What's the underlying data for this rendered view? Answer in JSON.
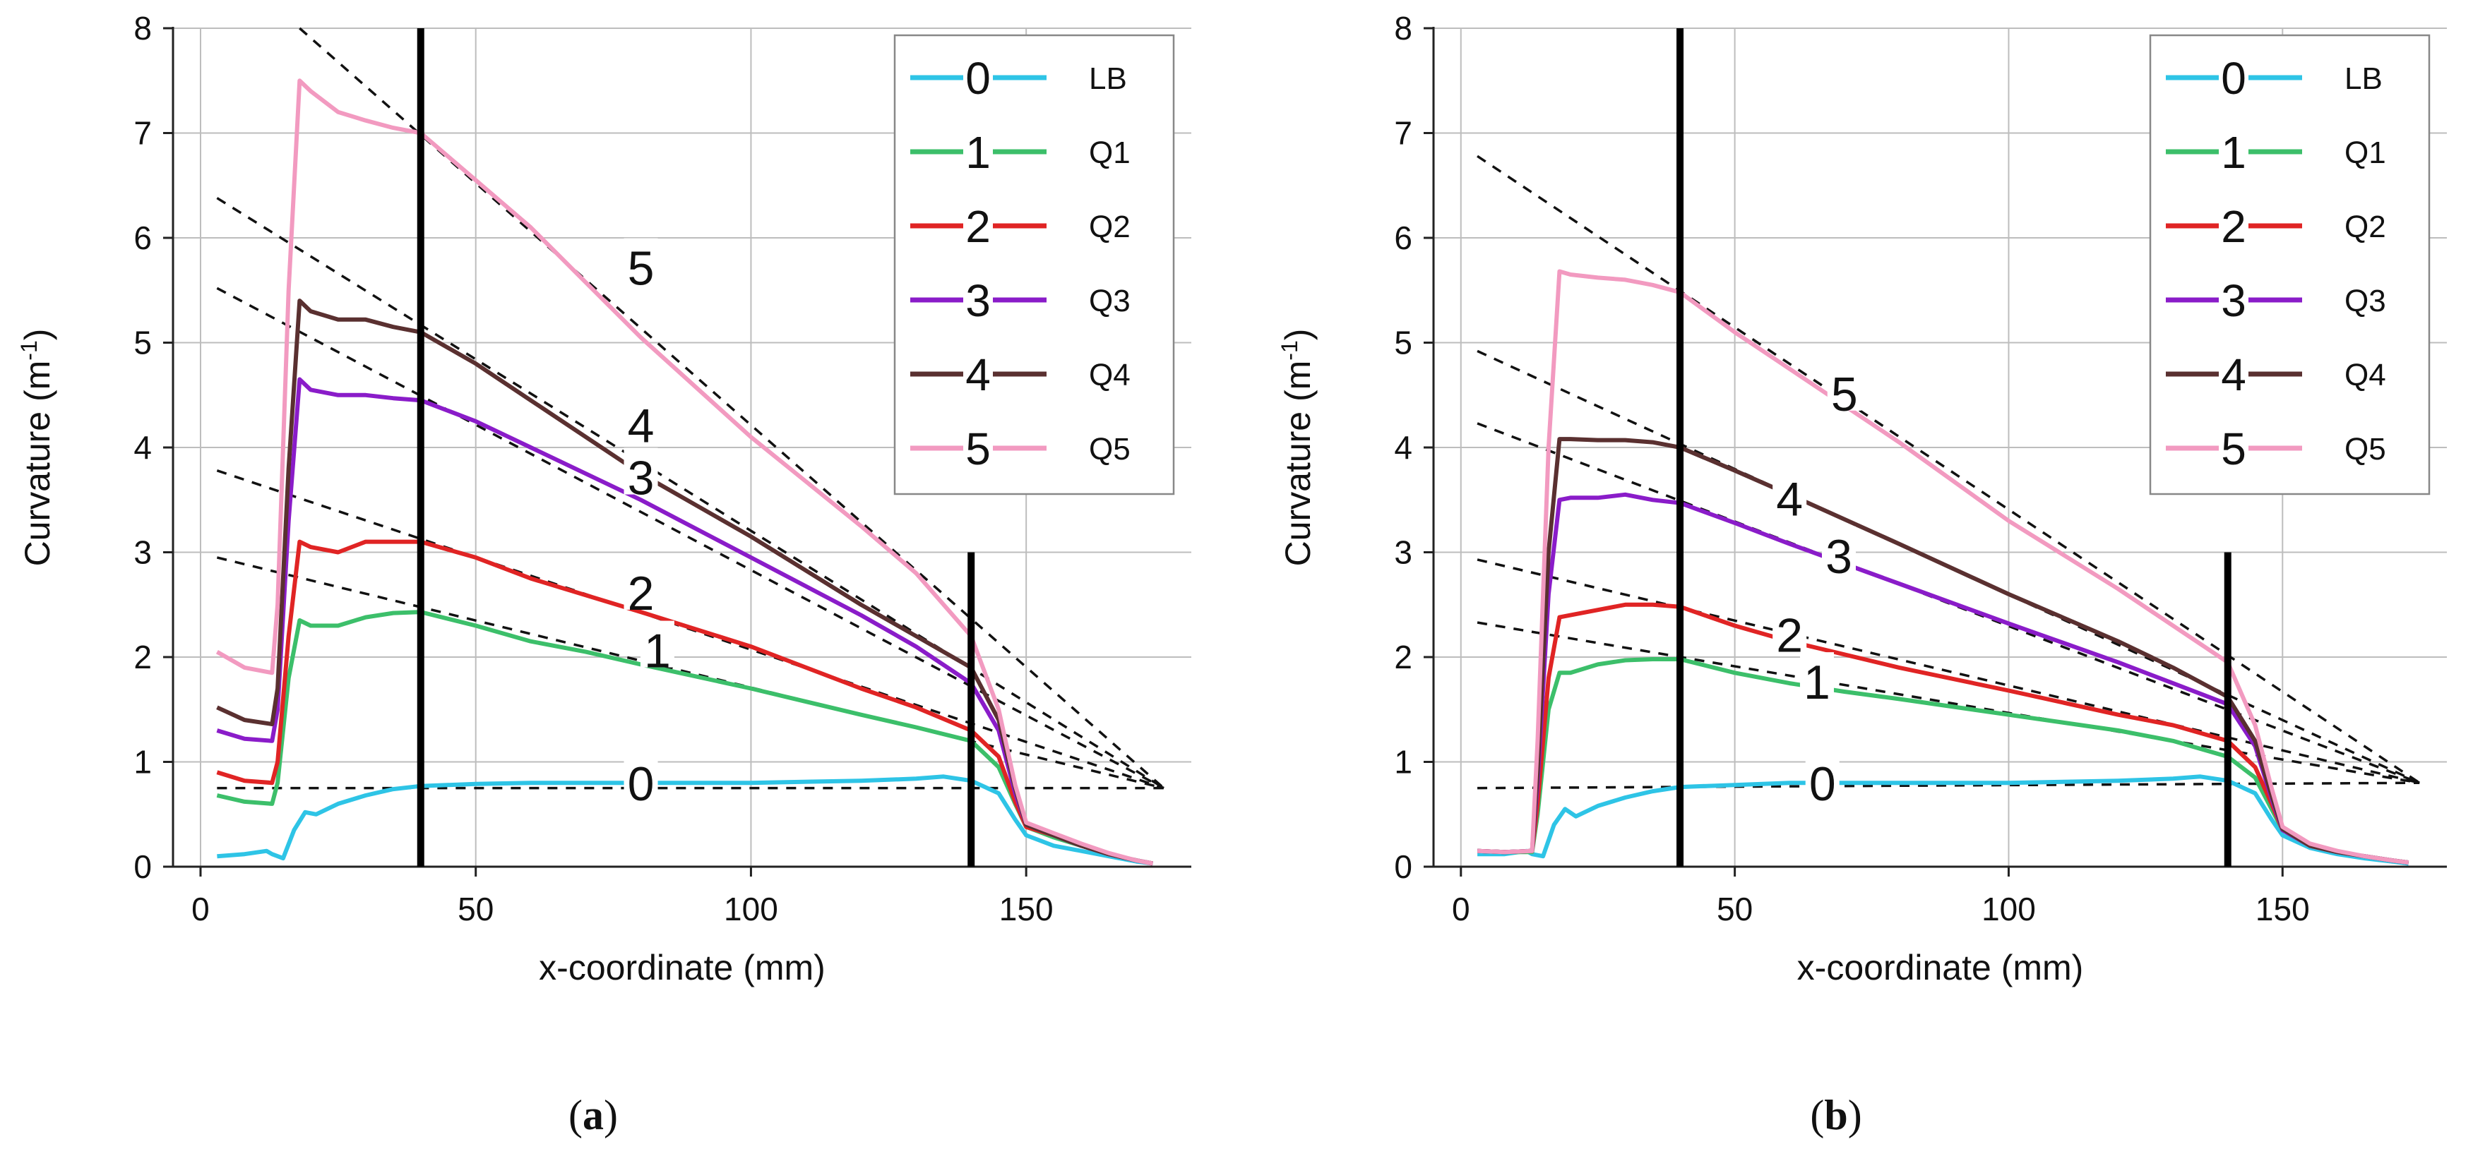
{
  "chart_data": [
    {
      "type": "line",
      "panel": "a",
      "caption_open": "(",
      "caption_letter": "a",
      "caption_close": ")",
      "xlabel": "x-coordinate (mm)",
      "ylabel_main": "Curvature (m",
      "ylabel_sup": "-1",
      "ylabel_close": ")",
      "xlim": [
        -5,
        180
      ],
      "ylim": [
        0,
        8
      ],
      "xticks": [
        0,
        50,
        100,
        150
      ],
      "yticks": [
        0,
        1,
        2,
        3,
        4,
        5,
        6,
        7,
        8
      ],
      "grid": true,
      "legend_position": "top-right",
      "vertical_markers": [
        {
          "x": 40,
          "y_top": 8
        },
        {
          "x": 140,
          "y_top": 3
        }
      ],
      "series": [
        {
          "name": "LB",
          "number": "0",
          "color": "#2ec4e6",
          "x": [
            3,
            8,
            12,
            13,
            15,
            17,
            19,
            21,
            25,
            30,
            35,
            40,
            50,
            60,
            80,
            100,
            120,
            130,
            135,
            140,
            145,
            148,
            150,
            155,
            160,
            165,
            170,
            173
          ],
          "y": [
            0.1,
            0.12,
            0.15,
            0.12,
            0.08,
            0.35,
            0.52,
            0.5,
            0.6,
            0.68,
            0.74,
            0.77,
            0.79,
            0.8,
            0.8,
            0.8,
            0.82,
            0.84,
            0.86,
            0.82,
            0.7,
            0.45,
            0.3,
            0.2,
            0.15,
            0.1,
            0.05,
            0.03
          ]
        },
        {
          "name": "Q1",
          "number": "1",
          "color": "#3cbf6a",
          "x": [
            3,
            8,
            13,
            14,
            16,
            18,
            20,
            25,
            30,
            35,
            40,
            50,
            60,
            70,
            80,
            100,
            120,
            130,
            140,
            145,
            148,
            150,
            155,
            160,
            165,
            170,
            173
          ],
          "y": [
            0.68,
            0.62,
            0.6,
            0.8,
            1.8,
            2.35,
            2.3,
            2.3,
            2.38,
            2.42,
            2.43,
            2.3,
            2.15,
            2.05,
            1.93,
            1.7,
            1.45,
            1.33,
            1.2,
            0.95,
            0.6,
            0.38,
            0.28,
            0.2,
            0.12,
            0.06,
            0.03
          ]
        },
        {
          "name": "Q2",
          "number": "2",
          "color": "#e02424",
          "x": [
            3,
            8,
            13,
            14,
            16,
            18,
            20,
            25,
            30,
            35,
            40,
            50,
            60,
            80,
            100,
            120,
            130,
            140,
            145,
            148,
            150,
            155,
            160,
            165,
            170,
            173
          ],
          "y": [
            0.9,
            0.82,
            0.8,
            1.0,
            2.2,
            3.1,
            3.05,
            3.0,
            3.1,
            3.1,
            3.1,
            2.95,
            2.75,
            2.43,
            2.1,
            1.7,
            1.52,
            1.3,
            1.05,
            0.62,
            0.38,
            0.3,
            0.2,
            0.12,
            0.06,
            0.03
          ]
        },
        {
          "name": "Q3",
          "number": "3",
          "color": "#8a1cc9",
          "x": [
            3,
            8,
            13,
            14,
            16,
            18,
            20,
            25,
            30,
            35,
            40,
            50,
            60,
            80,
            100,
            120,
            130,
            140,
            145,
            148,
            150,
            155,
            160,
            165,
            170,
            173
          ],
          "y": [
            1.3,
            1.22,
            1.2,
            1.5,
            3.3,
            4.65,
            4.55,
            4.5,
            4.5,
            4.47,
            4.45,
            4.25,
            4.0,
            3.5,
            2.95,
            2.4,
            2.1,
            1.75,
            1.3,
            0.7,
            0.4,
            0.3,
            0.2,
            0.12,
            0.06,
            0.03
          ]
        },
        {
          "name": "Q4",
          "number": "4",
          "color": "#5a3030",
          "x": [
            3,
            8,
            13,
            14,
            16,
            18,
            20,
            25,
            30,
            35,
            40,
            50,
            60,
            80,
            100,
            120,
            130,
            140,
            145,
            148,
            150,
            155,
            160,
            165,
            170,
            173
          ],
          "y": [
            1.52,
            1.4,
            1.36,
            1.7,
            3.8,
            5.4,
            5.3,
            5.22,
            5.22,
            5.15,
            5.1,
            4.8,
            4.45,
            3.75,
            3.15,
            2.5,
            2.2,
            1.9,
            1.4,
            0.75,
            0.4,
            0.3,
            0.2,
            0.12,
            0.06,
            0.03
          ]
        },
        {
          "name": "Q5",
          "number": "5",
          "color": "#f29ac0",
          "x": [
            3,
            8,
            13,
            14,
            16,
            18,
            20,
            25,
            30,
            35,
            40,
            50,
            60,
            80,
            100,
            120,
            130,
            140,
            145,
            148,
            150,
            155,
            160,
            165,
            170,
            173
          ],
          "y": [
            2.05,
            1.9,
            1.85,
            2.5,
            5.5,
            7.5,
            7.4,
            7.2,
            7.12,
            7.05,
            7.0,
            6.55,
            6.1,
            5.05,
            4.1,
            3.25,
            2.8,
            2.2,
            1.5,
            0.78,
            0.42,
            0.32,
            0.22,
            0.13,
            0.06,
            0.03
          ]
        }
      ],
      "fit_lines": [
        {
          "x": [
            3,
            175
          ],
          "y": [
            0.75,
            0.75
          ]
        },
        {
          "x": [
            3,
            175
          ],
          "y": [
            2.95,
            0.75
          ]
        },
        {
          "x": [
            3,
            175
          ],
          "y": [
            3.78,
            0.75
          ]
        },
        {
          "x": [
            3,
            175
          ],
          "y": [
            5.52,
            0.75
          ]
        },
        {
          "x": [
            3,
            175
          ],
          "y": [
            6.38,
            0.75
          ]
        },
        {
          "x": [
            18,
            175
          ],
          "y": [
            8.0,
            0.75
          ]
        }
      ],
      "curve_labels": [
        {
          "text": "0",
          "x": 80,
          "y": 0.78
        },
        {
          "text": "1",
          "x": 83,
          "y": 2.05
        },
        {
          "text": "2",
          "x": 80,
          "y": 2.6
        },
        {
          "text": "3",
          "x": 80,
          "y": 3.7
        },
        {
          "text": "4",
          "x": 80,
          "y": 4.2
        },
        {
          "text": "5",
          "x": 80,
          "y": 5.7
        }
      ]
    },
    {
      "type": "line",
      "panel": "b",
      "caption_open": "(",
      "caption_letter": "b",
      "caption_close": ")",
      "xlabel": "x-coordinate (mm)",
      "ylabel_main": "Curvature (m",
      "ylabel_sup": "-1",
      "ylabel_close": ")",
      "xlim": [
        -5,
        180
      ],
      "ylim": [
        0,
        8
      ],
      "xticks": [
        0,
        50,
        100,
        150
      ],
      "yticks": [
        0,
        1,
        2,
        3,
        4,
        5,
        6,
        7,
        8
      ],
      "grid": true,
      "legend_position": "top-right",
      "vertical_markers": [
        {
          "x": 40,
          "y_top": 8
        },
        {
          "x": 140,
          "y_top": 3
        }
      ],
      "series": [
        {
          "name": "LB",
          "number": "0",
          "color": "#2ec4e6",
          "x": [
            3,
            8,
            12,
            13,
            15,
            17,
            19,
            21,
            25,
            30,
            35,
            40,
            50,
            60,
            80,
            100,
            120,
            130,
            135,
            140,
            145,
            148,
            150,
            155,
            160,
            165,
            170,
            173
          ],
          "y": [
            0.12,
            0.12,
            0.15,
            0.12,
            0.1,
            0.4,
            0.55,
            0.48,
            0.58,
            0.66,
            0.72,
            0.76,
            0.78,
            0.8,
            0.8,
            0.8,
            0.82,
            0.84,
            0.86,
            0.82,
            0.7,
            0.45,
            0.3,
            0.18,
            0.12,
            0.08,
            0.05,
            0.03
          ]
        },
        {
          "name": "Q1",
          "number": "1",
          "color": "#3cbf6a",
          "x": [
            3,
            8,
            13,
            14,
            16,
            18,
            20,
            25,
            30,
            35,
            40,
            50,
            60,
            70,
            80,
            100,
            120,
            130,
            140,
            145,
            148,
            150,
            155,
            160,
            165,
            170,
            173
          ],
          "y": [
            0.15,
            0.14,
            0.14,
            0.5,
            1.5,
            1.85,
            1.85,
            1.93,
            1.97,
            1.98,
            1.98,
            1.85,
            1.75,
            1.67,
            1.6,
            1.45,
            1.3,
            1.2,
            1.05,
            0.85,
            0.55,
            0.35,
            0.2,
            0.14,
            0.1,
            0.06,
            0.04
          ]
        },
        {
          "name": "Q2",
          "number": "2",
          "color": "#e02424",
          "x": [
            3,
            8,
            13,
            14,
            16,
            18,
            20,
            25,
            30,
            35,
            40,
            50,
            60,
            80,
            100,
            120,
            130,
            140,
            145,
            148,
            150,
            155,
            160,
            165,
            170,
            173
          ],
          "y": [
            0.15,
            0.14,
            0.15,
            0.6,
            1.8,
            2.38,
            2.4,
            2.45,
            2.5,
            2.5,
            2.48,
            2.3,
            2.15,
            1.9,
            1.68,
            1.45,
            1.35,
            1.2,
            0.95,
            0.6,
            0.35,
            0.2,
            0.14,
            0.1,
            0.06,
            0.04
          ]
        },
        {
          "name": "Q3",
          "number": "3",
          "color": "#8a1cc9",
          "x": [
            3,
            8,
            13,
            14,
            16,
            18,
            20,
            25,
            30,
            35,
            40,
            50,
            60,
            80,
            100,
            120,
            130,
            140,
            145,
            148,
            150,
            155,
            160,
            165,
            170,
            173
          ],
          "y": [
            0.15,
            0.14,
            0.15,
            0.8,
            2.6,
            3.5,
            3.52,
            3.52,
            3.55,
            3.5,
            3.47,
            3.28,
            3.08,
            2.7,
            2.32,
            1.95,
            1.75,
            1.55,
            1.15,
            0.65,
            0.35,
            0.2,
            0.14,
            0.1,
            0.06,
            0.04
          ]
        },
        {
          "name": "Q4",
          "number": "4",
          "color": "#5a3030",
          "x": [
            3,
            8,
            13,
            14,
            16,
            18,
            20,
            25,
            30,
            35,
            40,
            50,
            60,
            80,
            100,
            120,
            130,
            140,
            145,
            148,
            150,
            155,
            160,
            165,
            170,
            173
          ],
          "y": [
            0.15,
            0.14,
            0.15,
            0.9,
            3.0,
            4.08,
            4.08,
            4.07,
            4.07,
            4.05,
            4.0,
            3.78,
            3.55,
            3.08,
            2.6,
            2.15,
            1.9,
            1.62,
            1.2,
            0.68,
            0.36,
            0.2,
            0.14,
            0.1,
            0.06,
            0.04
          ]
        },
        {
          "name": "Q5",
          "number": "5",
          "color": "#f29ac0",
          "x": [
            3,
            8,
            13,
            14,
            16,
            18,
            20,
            25,
            30,
            35,
            40,
            50,
            60,
            80,
            100,
            120,
            130,
            140,
            145,
            148,
            150,
            155,
            160,
            165,
            170,
            173
          ],
          "y": [
            0.15,
            0.14,
            0.15,
            1.2,
            4.0,
            5.68,
            5.65,
            5.62,
            5.6,
            5.55,
            5.48,
            5.1,
            4.75,
            4.05,
            3.3,
            2.65,
            2.3,
            1.95,
            1.35,
            0.75,
            0.38,
            0.22,
            0.15,
            0.1,
            0.06,
            0.04
          ]
        }
      ],
      "fit_lines": [
        {
          "x": [
            3,
            175
          ],
          "y": [
            0.75,
            0.8
          ]
        },
        {
          "x": [
            3,
            175
          ],
          "y": [
            2.33,
            0.8
          ]
        },
        {
          "x": [
            3,
            175
          ],
          "y": [
            2.93,
            0.8
          ]
        },
        {
          "x": [
            3,
            175
          ],
          "y": [
            4.23,
            0.8
          ]
        },
        {
          "x": [
            3,
            175
          ],
          "y": [
            4.92,
            0.8
          ]
        },
        {
          "x": [
            3,
            175
          ],
          "y": [
            6.78,
            0.8
          ]
        }
      ],
      "curve_labels": [
        {
          "text": "0",
          "x": 66,
          "y": 0.78
        },
        {
          "text": "1",
          "x": 65,
          "y": 1.75
        },
        {
          "text": "2",
          "x": 60,
          "y": 2.2
        },
        {
          "text": "3",
          "x": 69,
          "y": 2.95
        },
        {
          "text": "4",
          "x": 60,
          "y": 3.5
        },
        {
          "text": "5",
          "x": 70,
          "y": 4.5
        }
      ]
    }
  ]
}
